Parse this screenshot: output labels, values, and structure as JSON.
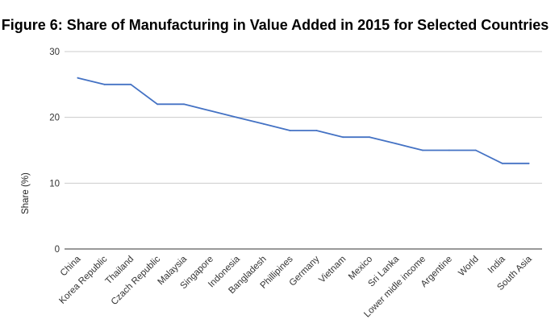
{
  "chart_data": {
    "type": "line",
    "title": "Figure 6: Share of Manufacturing in Value Added in 2015 for Selected Countries",
    "xlabel": "",
    "ylabel": "Share (%)",
    "ylim": [
      0,
      30
    ],
    "yticks": [
      0,
      10,
      20,
      30
    ],
    "grid": true,
    "legend": "none",
    "categories": [
      "China",
      "Korea Republic",
      "Thailand",
      "Czach Republic",
      "Malaysia",
      "Singapore",
      "Indonesia",
      "Bangladesh",
      "Phillipines",
      "Germany",
      "Vietnam",
      "Mexico",
      "Sri Lanka",
      "Lower midle income",
      "Argentine",
      "World",
      "India",
      "South Asia"
    ],
    "series": [
      {
        "color": "#4472c4",
        "values": [
          26,
          25,
          25,
          22,
          22,
          21,
          20,
          19,
          18,
          18,
          17,
          17,
          16,
          15,
          15,
          15,
          13,
          13
        ]
      }
    ]
  }
}
